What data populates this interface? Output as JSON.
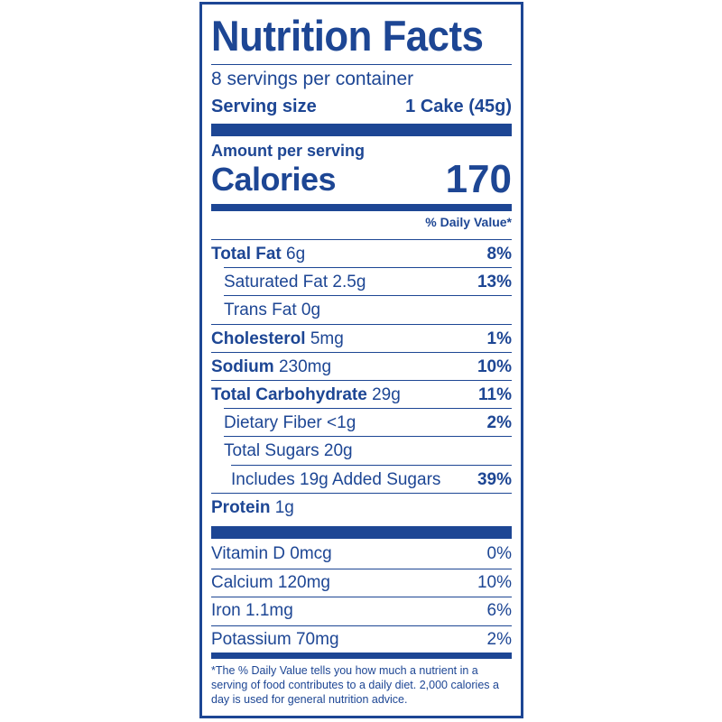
{
  "title": "Nutrition Facts",
  "servings_per_container": "8 servings per container",
  "serving_size_label": "Serving size",
  "serving_size_value": "1 Cake (45g)",
  "amount_per_serving": "Amount per serving",
  "calories_label": "Calories",
  "calories_value": "170",
  "daily_value_header": "% Daily Value*",
  "nutrients": [
    {
      "name": "Total Fat",
      "amount": "6g",
      "dv": "8%",
      "bold": true,
      "indent": 0
    },
    {
      "name": "Saturated Fat",
      "amount": "2.5g",
      "dv": "13%",
      "bold": false,
      "indent": 1
    },
    {
      "name": "Trans Fat",
      "amount": "0g",
      "dv": "",
      "bold": false,
      "indent": 1
    },
    {
      "name": "Cholesterol",
      "amount": "5mg",
      "dv": "1%",
      "bold": true,
      "indent": 0
    },
    {
      "name": "Sodium",
      "amount": "230mg",
      "dv": "10%",
      "bold": true,
      "indent": 0
    },
    {
      "name": "Total Carbohydrate",
      "amount": "29g",
      "dv": "11%",
      "bold": true,
      "indent": 0
    },
    {
      "name": "Dietary Fiber",
      "amount": "<1g",
      "dv": "2%",
      "bold": false,
      "indent": 1
    },
    {
      "name": "Total Sugars",
      "amount": "20g",
      "dv": "",
      "bold": false,
      "indent": 1
    },
    {
      "name": "Includes 19g Added Sugars",
      "amount": "",
      "dv": "39%",
      "bold": false,
      "indent": 2
    },
    {
      "name": "Protein",
      "amount": "1g",
      "dv": "",
      "bold": true,
      "indent": 0
    }
  ],
  "vitamins": [
    {
      "name": "Vitamin D 0mcg",
      "dv": "0%"
    },
    {
      "name": "Calcium 120mg",
      "dv": "10%"
    },
    {
      "name": "Iron 1.1mg",
      "dv": "6%"
    },
    {
      "name": "Potassium 70mg",
      "dv": "2%"
    }
  ],
  "footnote": "*The % Daily Value tells you how much a nutrient in a serving of food contributes to a daily diet. 2,000 calories a day is used for general nutrition advice.",
  "colors": {
    "ink": "#1d4694",
    "background": "#ffffff"
  }
}
